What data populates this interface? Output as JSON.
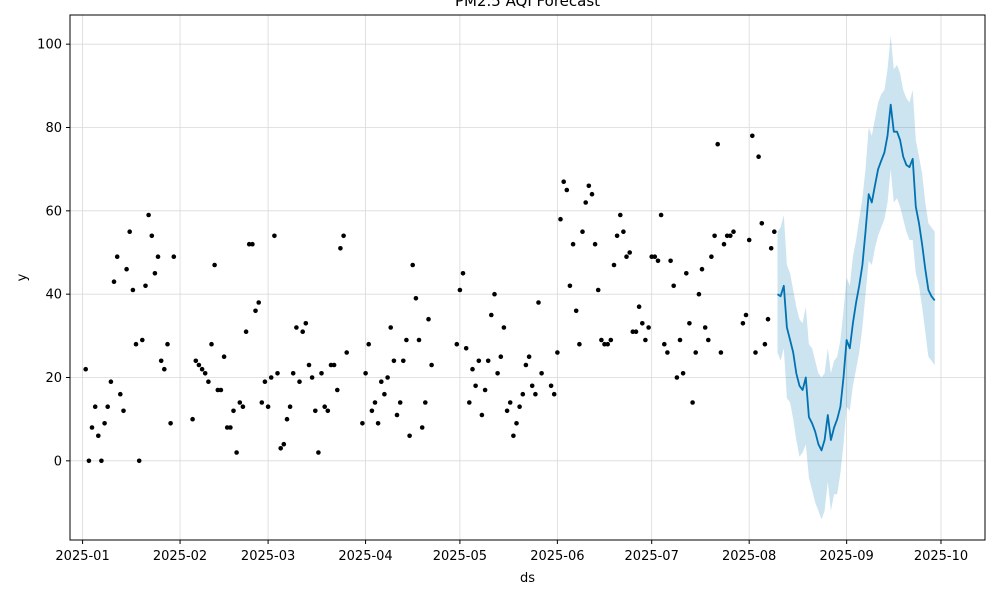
{
  "chart_data": {
    "type": "scatter",
    "title": "PM2.5 AQI Forecast",
    "xlabel": "ds",
    "ylabel": "y",
    "x_type": "date",
    "xlim": [
      "2024-12-28",
      "2025-10-15"
    ],
    "ylim": [
      -19,
      107
    ],
    "x_ticks": [
      "2025-01-01",
      "2025-02-01",
      "2025-03-01",
      "2025-04-01",
      "2025-05-01",
      "2025-06-01",
      "2025-07-01",
      "2025-08-01",
      "2025-09-01",
      "2025-10-01"
    ],
    "x_tick_labels": [
      "2025-01",
      "2025-02",
      "2025-03",
      "2025-04",
      "2025-05",
      "2025-06",
      "2025-07",
      "2025-08",
      "2025-09",
      "2025-10"
    ],
    "y_ticks": [
      0,
      20,
      40,
      60,
      80,
      100
    ],
    "y_tick_labels": [
      "0",
      "20",
      "40",
      "60",
      "80",
      "100"
    ],
    "grid": true,
    "colors": {
      "observed": "#000000",
      "forecast_line": "#0072B2",
      "interval_fill": "#0072B2",
      "grid": "#d9d9d9"
    },
    "observed": [
      [
        "2025-01-02",
        22
      ],
      [
        "2025-01-03",
        0
      ],
      [
        "2025-01-04",
        8
      ],
      [
        "2025-01-05",
        13
      ],
      [
        "2025-01-06",
        6
      ],
      [
        "2025-01-07",
        0
      ],
      [
        "2025-01-08",
        9
      ],
      [
        "2025-01-09",
        13
      ],
      [
        "2025-01-10",
        19
      ],
      [
        "2025-01-11",
        43
      ],
      [
        "2025-01-12",
        49
      ],
      [
        "2025-01-13",
        16
      ],
      [
        "2025-01-14",
        12
      ],
      [
        "2025-01-15",
        46
      ],
      [
        "2025-01-16",
        55
      ],
      [
        "2025-01-17",
        41
      ],
      [
        "2025-01-18",
        28
      ],
      [
        "2025-01-19",
        0
      ],
      [
        "2025-01-20",
        29
      ],
      [
        "2025-01-21",
        42
      ],
      [
        "2025-01-22",
        59
      ],
      [
        "2025-01-23",
        54
      ],
      [
        "2025-01-24",
        45
      ],
      [
        "2025-01-25",
        49
      ],
      [
        "2025-01-26",
        24
      ],
      [
        "2025-01-27",
        22
      ],
      [
        "2025-01-28",
        28
      ],
      [
        "2025-01-29",
        9
      ],
      [
        "2025-01-30",
        49
      ],
      [
        "2025-02-05",
        10
      ],
      [
        "2025-02-06",
        24
      ],
      [
        "2025-02-07",
        23
      ],
      [
        "2025-02-08",
        22
      ],
      [
        "2025-02-09",
        21
      ],
      [
        "2025-02-10",
        19
      ],
      [
        "2025-02-11",
        28
      ],
      [
        "2025-02-12",
        47
      ],
      [
        "2025-02-13",
        17
      ],
      [
        "2025-02-14",
        17
      ],
      [
        "2025-02-15",
        25
      ],
      [
        "2025-02-16",
        8
      ],
      [
        "2025-02-17",
        8
      ],
      [
        "2025-02-18",
        12
      ],
      [
        "2025-02-19",
        2
      ],
      [
        "2025-02-20",
        14
      ],
      [
        "2025-02-21",
        13
      ],
      [
        "2025-02-22",
        31
      ],
      [
        "2025-02-23",
        52
      ],
      [
        "2025-02-24",
        52
      ],
      [
        "2025-02-25",
        36
      ],
      [
        "2025-02-26",
        38
      ],
      [
        "2025-02-27",
        14
      ],
      [
        "2025-02-28",
        19
      ],
      [
        "2025-03-01",
        13
      ],
      [
        "2025-03-02",
        20
      ],
      [
        "2025-03-03",
        54
      ],
      [
        "2025-03-04",
        21
      ],
      [
        "2025-03-05",
        3
      ],
      [
        "2025-03-06",
        4
      ],
      [
        "2025-03-07",
        10
      ],
      [
        "2025-03-08",
        13
      ],
      [
        "2025-03-09",
        21
      ],
      [
        "2025-03-10",
        32
      ],
      [
        "2025-03-11",
        19
      ],
      [
        "2025-03-12",
        31
      ],
      [
        "2025-03-13",
        33
      ],
      [
        "2025-03-14",
        23
      ],
      [
        "2025-03-15",
        20
      ],
      [
        "2025-03-16",
        12
      ],
      [
        "2025-03-17",
        2
      ],
      [
        "2025-03-18",
        21
      ],
      [
        "2025-03-19",
        13
      ],
      [
        "2025-03-20",
        12
      ],
      [
        "2025-03-21",
        23
      ],
      [
        "2025-03-22",
        23
      ],
      [
        "2025-03-23",
        17
      ],
      [
        "2025-03-24",
        51
      ],
      [
        "2025-03-25",
        54
      ],
      [
        "2025-03-26",
        26
      ],
      [
        "2025-03-31",
        9
      ],
      [
        "2025-04-01",
        21
      ],
      [
        "2025-04-02",
        28
      ],
      [
        "2025-04-03",
        12
      ],
      [
        "2025-04-04",
        14
      ],
      [
        "2025-04-05",
        9
      ],
      [
        "2025-04-06",
        19
      ],
      [
        "2025-04-07",
        16
      ],
      [
        "2025-04-08",
        20
      ],
      [
        "2025-04-09",
        32
      ],
      [
        "2025-04-10",
        24
      ],
      [
        "2025-04-11",
        11
      ],
      [
        "2025-04-12",
        14
      ],
      [
        "2025-04-13",
        24
      ],
      [
        "2025-04-14",
        29
      ],
      [
        "2025-04-15",
        6
      ],
      [
        "2025-04-16",
        47
      ],
      [
        "2025-04-17",
        39
      ],
      [
        "2025-04-18",
        29
      ],
      [
        "2025-04-19",
        8
      ],
      [
        "2025-04-20",
        14
      ],
      [
        "2025-04-21",
        34
      ],
      [
        "2025-04-22",
        23
      ],
      [
        "2025-04-30",
        28
      ],
      [
        "2025-05-01",
        41
      ],
      [
        "2025-05-02",
        45
      ],
      [
        "2025-05-03",
        27
      ],
      [
        "2025-05-04",
        14
      ],
      [
        "2025-05-05",
        22
      ],
      [
        "2025-05-06",
        18
      ],
      [
        "2025-05-07",
        24
      ],
      [
        "2025-05-08",
        11
      ],
      [
        "2025-05-09",
        17
      ],
      [
        "2025-05-10",
        24
      ],
      [
        "2025-05-11",
        35
      ],
      [
        "2025-05-12",
        40
      ],
      [
        "2025-05-13",
        21
      ],
      [
        "2025-05-14",
        25
      ],
      [
        "2025-05-15",
        32
      ],
      [
        "2025-05-16",
        12
      ],
      [
        "2025-05-17",
        14
      ],
      [
        "2025-05-18",
        6
      ],
      [
        "2025-05-19",
        9
      ],
      [
        "2025-05-20",
        13
      ],
      [
        "2025-05-21",
        16
      ],
      [
        "2025-05-22",
        23
      ],
      [
        "2025-05-23",
        25
      ],
      [
        "2025-05-24",
        18
      ],
      [
        "2025-05-25",
        16
      ],
      [
        "2025-05-26",
        38
      ],
      [
        "2025-05-27",
        21
      ],
      [
        "2025-05-30",
        18
      ],
      [
        "2025-05-31",
        16
      ],
      [
        "2025-06-01",
        26
      ],
      [
        "2025-06-02",
        58
      ],
      [
        "2025-06-03",
        67
      ],
      [
        "2025-06-04",
        65
      ],
      [
        "2025-06-05",
        42
      ],
      [
        "2025-06-06",
        52
      ],
      [
        "2025-06-07",
        36
      ],
      [
        "2025-06-08",
        28
      ],
      [
        "2025-06-09",
        55
      ],
      [
        "2025-06-10",
        62
      ],
      [
        "2025-06-11",
        66
      ],
      [
        "2025-06-12",
        64
      ],
      [
        "2025-06-13",
        52
      ],
      [
        "2025-06-14",
        41
      ],
      [
        "2025-06-15",
        29
      ],
      [
        "2025-06-16",
        28
      ],
      [
        "2025-06-17",
        28
      ],
      [
        "2025-06-18",
        29
      ],
      [
        "2025-06-19",
        47
      ],
      [
        "2025-06-20",
        54
      ],
      [
        "2025-06-21",
        59
      ],
      [
        "2025-06-22",
        55
      ],
      [
        "2025-06-23",
        49
      ],
      [
        "2025-06-24",
        50
      ],
      [
        "2025-06-25",
        31
      ],
      [
        "2025-06-26",
        31
      ],
      [
        "2025-06-27",
        37
      ],
      [
        "2025-06-28",
        33
      ],
      [
        "2025-06-29",
        29
      ],
      [
        "2025-06-30",
        32
      ],
      [
        "2025-07-01",
        49
      ],
      [
        "2025-07-02",
        49
      ],
      [
        "2025-07-03",
        48
      ],
      [
        "2025-07-04",
        59
      ],
      [
        "2025-07-05",
        28
      ],
      [
        "2025-07-06",
        26
      ],
      [
        "2025-07-07",
        48
      ],
      [
        "2025-07-08",
        42
      ],
      [
        "2025-07-09",
        20
      ],
      [
        "2025-07-10",
        29
      ],
      [
        "2025-07-11",
        21
      ],
      [
        "2025-07-12",
        45
      ],
      [
        "2025-07-13",
        33
      ],
      [
        "2025-07-14",
        14
      ],
      [
        "2025-07-15",
        26
      ],
      [
        "2025-07-16",
        40
      ],
      [
        "2025-07-17",
        46
      ],
      [
        "2025-07-18",
        32
      ],
      [
        "2025-07-19",
        29
      ],
      [
        "2025-07-20",
        49
      ],
      [
        "2025-07-21",
        54
      ],
      [
        "2025-07-22",
        76
      ],
      [
        "2025-07-23",
        26
      ],
      [
        "2025-07-24",
        52
      ],
      [
        "2025-07-25",
        54
      ],
      [
        "2025-07-26",
        54
      ],
      [
        "2025-07-27",
        55
      ],
      [
        "2025-07-30",
        33
      ],
      [
        "2025-07-31",
        35
      ],
      [
        "2025-08-01",
        53
      ],
      [
        "2025-08-02",
        78
      ],
      [
        "2025-08-03",
        26
      ],
      [
        "2025-08-04",
        73
      ],
      [
        "2025-08-05",
        57
      ],
      [
        "2025-08-06",
        28
      ],
      [
        "2025-08-07",
        34
      ],
      [
        "2025-08-08",
        51
      ],
      [
        "2025-08-09",
        55
      ]
    ],
    "forecast": [
      [
        "2025-08-10",
        40,
        26,
        55
      ],
      [
        "2025-08-11",
        39.5,
        24,
        56
      ],
      [
        "2025-08-12",
        42,
        27,
        59
      ],
      [
        "2025-08-13",
        32,
        15,
        47
      ],
      [
        "2025-08-14",
        29,
        14,
        45
      ],
      [
        "2025-08-15",
        26,
        10,
        41
      ],
      [
        "2025-08-16",
        21,
        5,
        37
      ],
      [
        "2025-08-17",
        18,
        1,
        34
      ],
      [
        "2025-08-18",
        17,
        2,
        33
      ],
      [
        "2025-08-19",
        20,
        4,
        37
      ],
      [
        "2025-08-20",
        10.5,
        -4,
        28
      ],
      [
        "2025-08-21",
        9,
        -7,
        27
      ],
      [
        "2025-08-22",
        7,
        -10,
        24
      ],
      [
        "2025-08-23",
        4,
        -12,
        21
      ],
      [
        "2025-08-24",
        2.5,
        -14,
        20
      ],
      [
        "2025-08-25",
        5,
        -12,
        21
      ],
      [
        "2025-08-26",
        11,
        -5,
        27
      ],
      [
        "2025-08-27",
        5,
        -12,
        21
      ],
      [
        "2025-08-28",
        8,
        -8,
        24
      ],
      [
        "2025-08-29",
        10,
        -8,
        25
      ],
      [
        "2025-08-30",
        13,
        -3,
        29
      ],
      [
        "2025-08-31",
        20,
        4,
        36
      ],
      [
        "2025-09-01",
        29,
        13,
        44
      ],
      [
        "2025-09-02",
        27,
        12,
        42
      ],
      [
        "2025-09-03",
        33,
        18,
        49
      ],
      [
        "2025-09-04",
        38,
        22,
        53
      ],
      [
        "2025-09-05",
        42,
        26,
        58
      ],
      [
        "2025-09-06",
        47,
        32,
        63
      ],
      [
        "2025-09-07",
        55,
        40,
        70
      ],
      [
        "2025-09-08",
        64,
        48,
        80
      ],
      [
        "2025-09-09",
        62,
        47,
        78
      ],
      [
        "2025-09-10",
        66,
        51,
        82
      ],
      [
        "2025-09-11",
        70,
        54,
        86
      ],
      [
        "2025-09-12",
        72,
        56,
        88
      ],
      [
        "2025-09-13",
        74,
        58,
        89
      ],
      [
        "2025-09-14",
        78,
        62,
        94
      ],
      [
        "2025-09-15",
        85.5,
        70,
        102
      ],
      [
        "2025-09-16",
        79,
        62,
        94
      ],
      [
        "2025-09-17",
        79,
        63,
        95
      ],
      [
        "2025-09-18",
        77,
        61,
        93
      ],
      [
        "2025-09-19",
        73,
        58,
        89
      ],
      [
        "2025-09-20",
        71,
        55,
        87
      ],
      [
        "2025-09-21",
        70.5,
        53,
        86
      ],
      [
        "2025-09-22",
        72.5,
        53,
        89
      ],
      [
        "2025-09-23",
        61,
        45,
        77
      ],
      [
        "2025-09-24",
        57,
        42,
        73
      ],
      [
        "2025-09-25",
        52,
        37,
        69
      ],
      [
        "2025-09-26",
        46,
        31,
        62
      ],
      [
        "2025-09-27",
        41,
        25,
        57
      ],
      [
        "2025-09-28",
        39.5,
        24,
        56
      ],
      [
        "2025-09-29",
        38.5,
        23,
        55
      ]
    ]
  }
}
